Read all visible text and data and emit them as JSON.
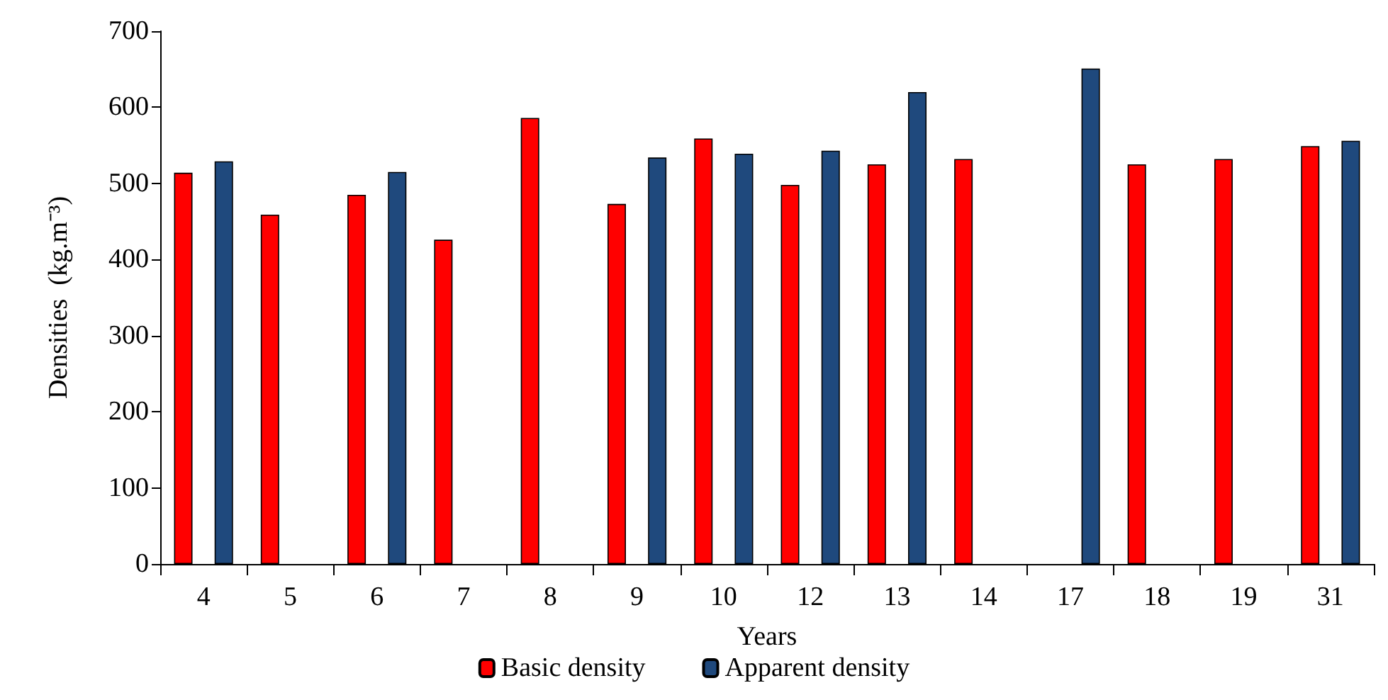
{
  "chart_data": {
    "type": "bar",
    "xlabel": "Years",
    "ylabel": "Densities  (kg.m⁻³)",
    "categories": [
      "4",
      "5",
      "6",
      "7",
      "8",
      "9",
      "10",
      "12",
      "13",
      "14",
      "17",
      "18",
      "19",
      "31"
    ],
    "series": [
      {
        "name": "Basic density",
        "color": "#ff0000",
        "values": [
          514,
          459,
          485,
          426,
          586,
          473,
          559,
          498,
          525,
          532,
          null,
          525,
          532,
          549
        ]
      },
      {
        "name": "Apparent density",
        "color": "#1f497d",
        "values": [
          529,
          null,
          515,
          null,
          null,
          534,
          539,
          543,
          620,
          null,
          651,
          null,
          null,
          556
        ]
      }
    ],
    "ylim": [
      0,
      700
    ],
    "yticks": [
      0,
      100,
      200,
      300,
      400,
      500,
      600,
      700
    ],
    "grid": false,
    "legend": "bottom"
  }
}
